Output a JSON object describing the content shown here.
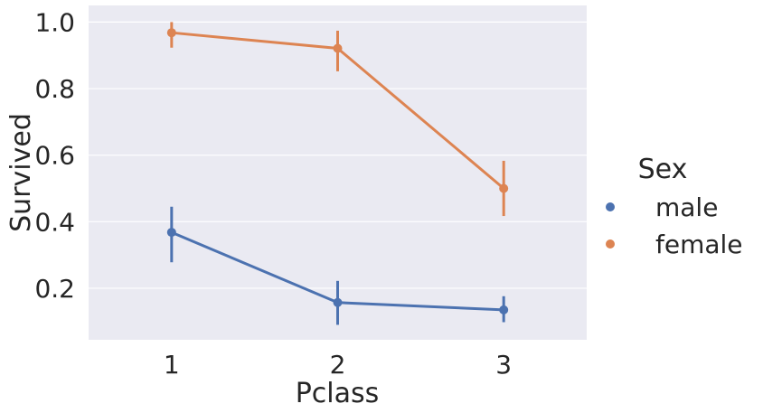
{
  "chart_data": {
    "type": "line",
    "xlabel": "Pclass",
    "ylabel": "Survived",
    "categories": [
      "1",
      "2",
      "3"
    ],
    "ylim": [
      0.045,
      1.05
    ],
    "yticks": [
      0.2,
      0.4,
      0.6,
      0.8,
      1.0
    ],
    "ytick_labels": [
      "0.2",
      "0.4",
      "0.6",
      "0.8",
      "1.0"
    ],
    "grid": true,
    "legend": {
      "title": "Sex",
      "placement": "right"
    },
    "series": [
      {
        "name": "male",
        "color": "#4c72b0",
        "values": [
          0.368,
          0.157,
          0.135
        ],
        "ci_low": [
          0.278,
          0.09,
          0.098
        ],
        "ci_high": [
          0.445,
          0.222,
          0.176
        ]
      },
      {
        "name": "female",
        "color": "#dd8452",
        "values": [
          0.968,
          0.921,
          0.5
        ],
        "ci_low": [
          0.923,
          0.852,
          0.417
        ],
        "ci_high": [
          1.0,
          0.974,
          0.583
        ]
      }
    ]
  }
}
